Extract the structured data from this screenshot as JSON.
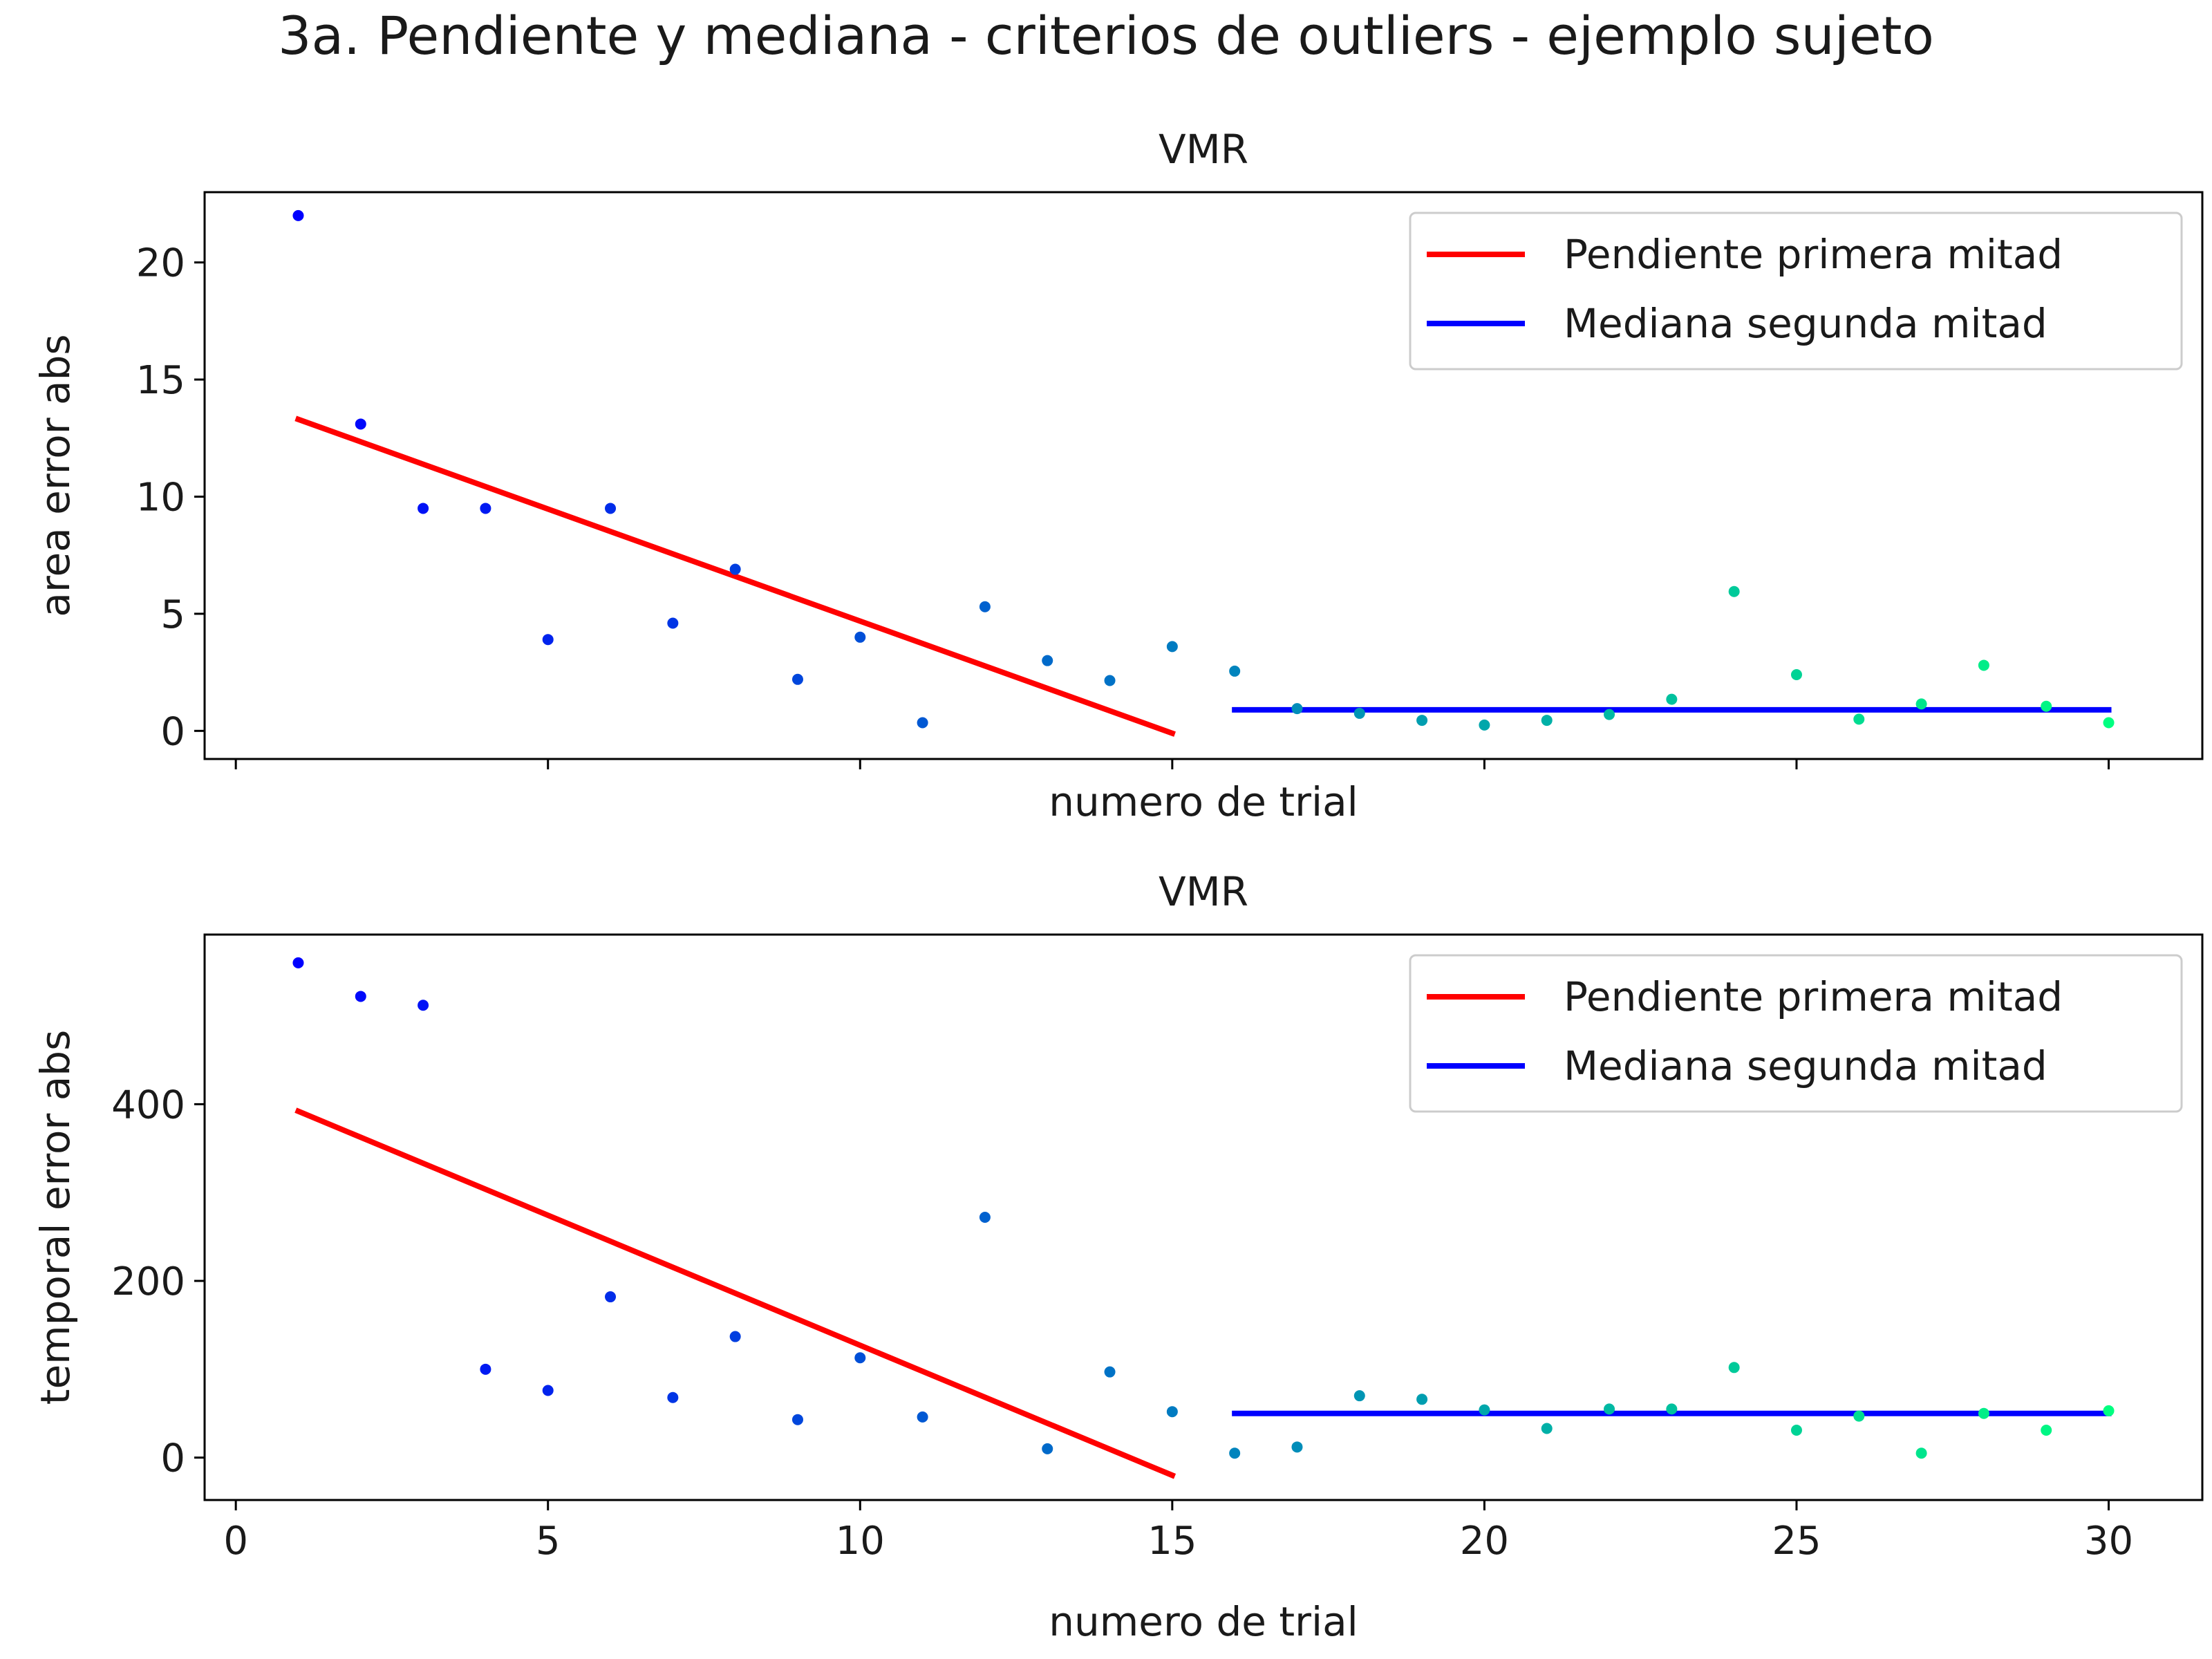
{
  "suptitle": "3a. Pendiente y mediana - criterios de outliers - ejemplo sujeto",
  "chart_data": [
    {
      "type": "scatter",
      "title": "VMR",
      "xlabel": "numero de trial",
      "ylabel": "area error abs",
      "xlim": [
        -0.5,
        31.5
      ],
      "ylim": [
        -1.2,
        23.0
      ],
      "xticks": [
        "0",
        "5",
        "10",
        "15",
        "20",
        "25",
        "30"
      ],
      "yticks": [
        "0",
        "5",
        "10",
        "15",
        "20"
      ],
      "show_xtick_labels": false,
      "grid": false,
      "legend_position": "upper-right",
      "x": [
        1,
        2,
        3,
        4,
        5,
        6,
        7,
        8,
        9,
        10,
        11,
        12,
        13,
        14,
        15,
        16,
        17,
        18,
        19,
        20,
        21,
        22,
        23,
        24,
        25,
        26,
        27,
        28,
        29,
        30
      ],
      "y": [
        22.0,
        13.1,
        9.5,
        9.5,
        3.9,
        9.5,
        4.6,
        6.9,
        2.2,
        4.0,
        0.35,
        5.3,
        3.0,
        2.15,
        3.6,
        2.55,
        0.95,
        0.75,
        0.45,
        0.25,
        0.45,
        0.7,
        1.35,
        5.95,
        2.4,
        0.5,
        1.15,
        2.8,
        1.05,
        0.35
      ],
      "colormap": "winter",
      "series": [
        {
          "name": "Pendiente primera mitad",
          "color": "#ff0000",
          "x": [
            1,
            15
          ],
          "y": [
            13.3,
            -0.1
          ]
        },
        {
          "name": "Mediana segunda mitad",
          "color": "#0000ff",
          "x": [
            16,
            30
          ],
          "y": [
            0.9,
            0.9
          ]
        }
      ]
    },
    {
      "type": "scatter",
      "title": "VMR",
      "xlabel": "numero de trial",
      "ylabel": "temporal error abs",
      "xlim": [
        -0.5,
        31.5
      ],
      "ylim": [
        -48,
        592
      ],
      "xticks": [
        "0",
        "5",
        "10",
        "15",
        "20",
        "25",
        "30"
      ],
      "yticks": [
        "0",
        "200",
        "400"
      ],
      "show_xtick_labels": true,
      "grid": false,
      "legend_position": "upper-right",
      "x": [
        1,
        2,
        3,
        4,
        5,
        6,
        7,
        8,
        9,
        10,
        11,
        12,
        13,
        14,
        15,
        16,
        17,
        18,
        19,
        20,
        21,
        22,
        23,
        24,
        25,
        26,
        27,
        28,
        29,
        30
      ],
      "y": [
        560,
        522,
        512,
        100,
        76,
        182,
        68,
        137,
        43,
        113,
        46,
        272,
        10,
        97,
        52,
        5,
        12,
        70,
        66,
        54,
        33,
        55,
        55,
        102,
        31,
        47,
        5,
        50,
        31,
        53
      ],
      "colormap": "winter",
      "series": [
        {
          "name": "Pendiente primera mitad",
          "color": "#ff0000",
          "x": [
            1,
            15
          ],
          "y": [
            392,
            -20
          ]
        },
        {
          "name": "Mediana segunda mitad",
          "color": "#0000ff",
          "x": [
            16,
            30
          ],
          "y": [
            50,
            50
          ]
        }
      ]
    }
  ]
}
